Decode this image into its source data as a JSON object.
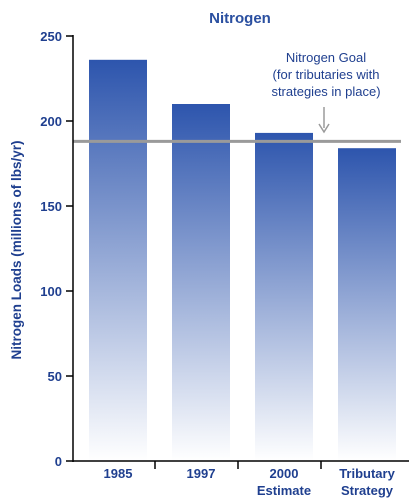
{
  "chart_data": {
    "type": "bar",
    "title": "Nitrogen",
    "xlabel": "",
    "ylabel": "Nitrogen Loads (millions of lbs/yr)",
    "categories": [
      [
        "1985"
      ],
      [
        "1997"
      ],
      [
        "2000",
        "Estimate"
      ],
      [
        "Tributary",
        "Strategy"
      ]
    ],
    "values": [
      236,
      210,
      193,
      184
    ],
    "ylim": [
      0,
      250
    ],
    "yticks": [
      0,
      50,
      100,
      150,
      200,
      250
    ],
    "goal": {
      "value": 188,
      "label": [
        "Nitrogen Goal",
        "(for tributaries with",
        "strategies in place)"
      ]
    },
    "grid": false,
    "legend": "none",
    "colors": {
      "bar_top": "#2d55ad",
      "bar_bottom": "#ffffff",
      "axis": "#000000",
      "title": "#2a4fa0",
      "goal_line": "#9a9a9a",
      "text": "#1f3f8f"
    }
  }
}
